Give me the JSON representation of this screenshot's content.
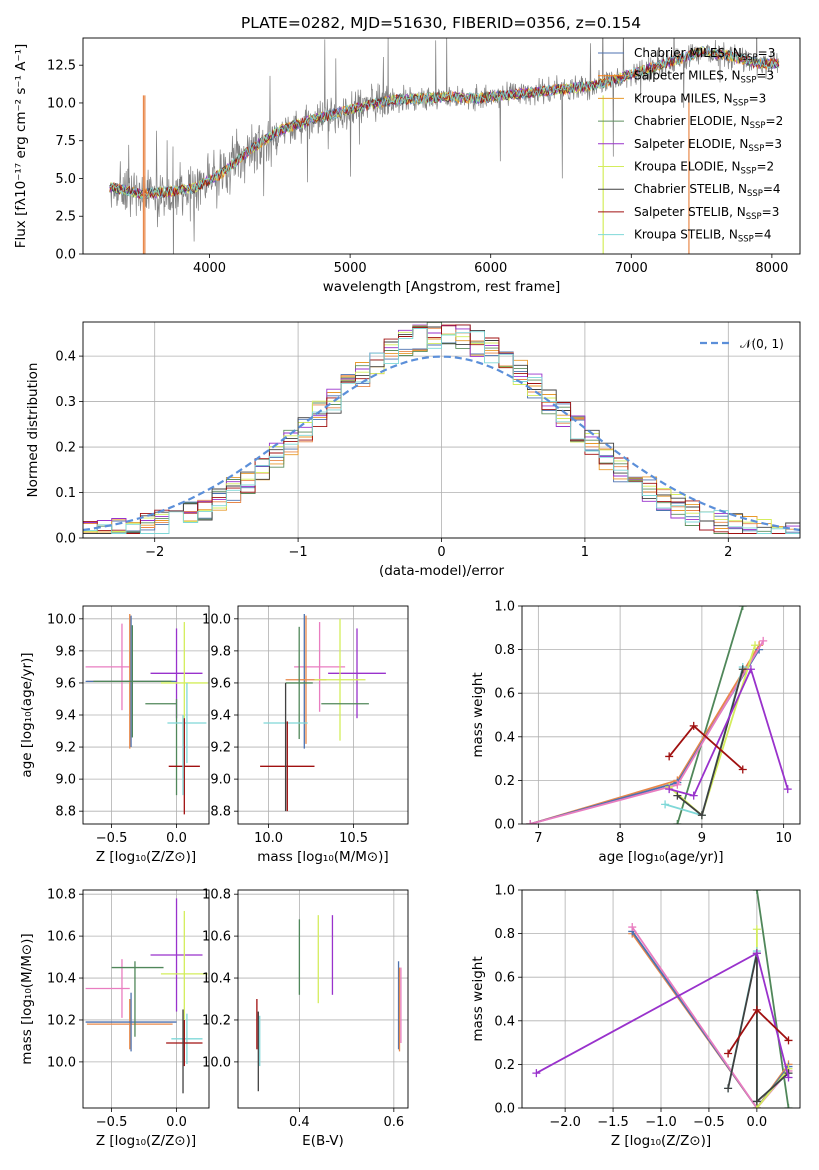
{
  "title": "PLATE=0282, MJD=51630, FIBERID=0356, z=0.154",
  "colors": {
    "data": "#808080",
    "chabrier_miles": "#4c72b0",
    "salpeter_miles": "#ff7f0e",
    "kroupa_miles": "#2ca02c",
    "chabrier_elodie": "#5f8f5f",
    "salpeter_elodie": "#9932cc",
    "kroupa_elodie": "#d4ed5c",
    "chabrier_stelib": "#404040",
    "salpeter_stelib": "#a01010",
    "kroupa_stelib": "#7fd8d8",
    "normal": "#5b8fd9",
    "orange": "#e8884a",
    "pink": "#e97dc0",
    "green": "#50875a",
    "purple": "#9932cc"
  },
  "chart_data": [
    {
      "type": "line",
      "name": "spectrum",
      "xlabel": "wavelength [Angstrom, rest frame]",
      "ylabel": "Flux [fλ10⁻¹⁷ erg cm⁻² s⁻¹ A⁻¹]",
      "xlim": [
        3100,
        8200
      ],
      "ylim": [
        0,
        14.3
      ],
      "xticks": [
        4000,
        5000,
        6000,
        7000,
        8000
      ],
      "yticks": [
        "0.0",
        "2.5",
        "5.0",
        "7.5",
        "10.0",
        "12.5"
      ],
      "legend_position": "upper-right",
      "legend": [
        {
          "label": "Chabrier MILES, N",
          "sub": "SSP",
          "suffix": "=3",
          "color": "#4c72b0"
        },
        {
          "label": "Salpeter MILES, N",
          "sub": "SSP",
          "suffix": "=3",
          "color": "#ff7f0e"
        },
        {
          "label": "Kroupa MILES, N",
          "sub": "SSP",
          "suffix": "=3",
          "color": "#e89a2c"
        },
        {
          "label": "Chabrier ELODIE, N",
          "sub": "SSP",
          "suffix": "=2",
          "color": "#5f8f5f"
        },
        {
          "label": "Salpeter ELODIE, N",
          "sub": "SSP",
          "suffix": "=3",
          "color": "#9932cc"
        },
        {
          "label": "Kroupa ELODIE, N",
          "sub": "SSP",
          "suffix": "=2",
          "color": "#d4ed5c"
        },
        {
          "label": "Chabrier STELIB, N",
          "sub": "SSP",
          "suffix": "=4",
          "color": "#404040"
        },
        {
          "label": "Salpeter STELIB, N",
          "sub": "SSP",
          "suffix": "=3",
          "color": "#a01010"
        },
        {
          "label": "Kroupa STELIB, N",
          "sub": "SSP",
          "suffix": "=4",
          "color": "#7fd8d8"
        }
      ],
      "continuum": {
        "x": [
          3300,
          3500,
          3700,
          3900,
          4100,
          4300,
          4500,
          4700,
          4900,
          5100,
          5300,
          5500,
          5700,
          5900,
          6100,
          6300,
          6500,
          6700,
          6900,
          7100,
          7300,
          7500,
          7700,
          7900
        ],
        "y": [
          4.4,
          4.0,
          4.1,
          4.4,
          5.4,
          7.0,
          8.2,
          8.8,
          9.3,
          9.8,
          10.2,
          10.3,
          10.4,
          10.3,
          10.5,
          10.7,
          10.9,
          11.1,
          11.6,
          12.2,
          12.8,
          13.4,
          13.1,
          12.6
        ]
      }
    },
    {
      "type": "histogram",
      "name": "residuals",
      "xlabel": "(data-model)/error",
      "ylabel": "Normed distribution",
      "xlim": [
        -2.5,
        2.5
      ],
      "ylim": [
        0,
        0.475
      ],
      "xticks": [
        "−2",
        "−1",
        "0",
        "1",
        "2"
      ],
      "yticks": [
        "0.0",
        "0.1",
        "0.2",
        "0.3",
        "0.4"
      ],
      "legend": {
        "label": "𝒩(0, 1)",
        "color": "#5b8fd9"
      },
      "bin_width": 0.1,
      "bins_from": -2.5,
      "bins_to": 2.5
    },
    {
      "type": "scatter",
      "name": "age-vs-Z",
      "xlabel": "Z [log₁₀(Z/Z⊙)]",
      "ylabel": "age  [log₁₀(age/yr)]",
      "xlim": [
        -0.72,
        0.25
      ],
      "ylim": [
        8.72,
        10.08
      ],
      "xticks": [
        "−0.5",
        "0.0"
      ],
      "yticks": [
        "8.8",
        "9.0",
        "9.2",
        "9.4",
        "9.6",
        "9.8",
        "10.0"
      ],
      "points": [
        {
          "x": -0.53,
          "y": 9.7,
          "xe": 0.17,
          "ye": 0.0,
          "color": "#e97dc0",
          "yr": [
            9.72,
            9.72
          ]
        },
        {
          "x": -0.42,
          "y": 9.7,
          "xe": 0.0,
          "ye": 0.27,
          "color": "#e97dc0"
        },
        {
          "x": -0.36,
          "y": 9.61,
          "xe": 0.33,
          "ye": 0.42,
          "color": "#e8884a"
        },
        {
          "x": -0.35,
          "y": 9.61,
          "xe": 0.35,
          "ye": 0.41,
          "color": "#4c72b0"
        },
        {
          "x": -0.34,
          "y": 9.61,
          "xe": 0.3,
          "ye": 0.35,
          "color": "#50875a"
        },
        {
          "x": 0.0,
          "y": 9.66,
          "xe": 0.2,
          "ye": 0.28,
          "color": "#9932cc"
        },
        {
          "x": 0.06,
          "y": 9.6,
          "xe": 0.18,
          "ye": 0.38,
          "color": "#d4ed5c"
        },
        {
          "x": -0.12,
          "y": 9.47,
          "xe": 0.12,
          "ye": 0.0,
          "color": "#50875a"
        },
        {
          "x": 0.0,
          "y": 9.2,
          "xe": 0.0,
          "ye": 0.3,
          "color": "#50875a"
        },
        {
          "x": 0.08,
          "y": 9.35,
          "xe": 0.15,
          "ye": 0.25,
          "color": "#7fd8d8"
        },
        {
          "x": 0.06,
          "y": 9.08,
          "xe": 0.12,
          "ye": 0.3,
          "color": "#a01010"
        },
        {
          "x": 0.05,
          "y": 9.15,
          "xe": 0.0,
          "ye": 0.25,
          "color": "#7fd8d8"
        }
      ]
    },
    {
      "type": "scatter",
      "name": "age-vs-mass",
      "xlabel": "mass [log₁₀(M/M⊙)]",
      "ylabel": "",
      "xlim": [
        9.82,
        10.82
      ],
      "ylim": [
        8.72,
        10.08
      ],
      "xticks": [
        "10.0",
        "10.5"
      ],
      "yticks": [
        "8.8",
        "9.0",
        "9.2",
        "9.4",
        "9.6",
        "9.8",
        "10.0"
      ],
      "points": [
        {
          "x": 10.3,
          "y": 9.7,
          "xe": 0.15,
          "ye": 0.28,
          "color": "#e97dc0"
        },
        {
          "x": 10.21,
          "y": 9.61,
          "xe": 0.0,
          "ye": 0.42,
          "color": "#4c72b0"
        },
        {
          "x": 10.22,
          "y": 9.62,
          "xe": 0.12,
          "ye": 0.4,
          "color": "#e8884a"
        },
        {
          "x": 10.18,
          "y": 9.6,
          "xe": 0.08,
          "ye": 0.35,
          "color": "#50875a"
        },
        {
          "x": 10.52,
          "y": 9.66,
          "xe": 0.17,
          "ye": 0.28,
          "color": "#9932cc"
        },
        {
          "x": 10.42,
          "y": 9.62,
          "xe": 0.15,
          "ye": 0.38,
          "color": "#d4ed5c"
        },
        {
          "x": 10.45,
          "y": 9.47,
          "xe": 0.14,
          "ye": 0.0,
          "color": "#50875a"
        },
        {
          "x": 10.1,
          "y": 9.35,
          "xe": 0.13,
          "ye": 0.0,
          "color": "#7fd8d8"
        },
        {
          "x": 10.11,
          "y": 9.08,
          "xe": 0.16,
          "ye": 0.28,
          "color": "#a01010"
        },
        {
          "x": 10.1,
          "y": 9.2,
          "xe": 0.0,
          "ye": 0.4,
          "color": "#404040"
        }
      ]
    },
    {
      "type": "line",
      "name": "mass-weight-vs-age",
      "xlabel": "age  [log₁₀(age/yr)]",
      "ylabel": "mass weight",
      "xlim": [
        6.8,
        10.2
      ],
      "ylim": [
        0,
        1
      ],
      "xticks": [
        "7",
        "8",
        "9",
        "10"
      ],
      "yticks": [
        "0.0",
        "0.2",
        "0.4",
        "0.6",
        "0.8",
        "1.0"
      ],
      "series": [
        {
          "color": "#50875a",
          "x": [
            8.7,
            9.5
          ],
          "y": [
            0.0,
            1.0
          ]
        },
        {
          "color": "#e8884a",
          "x": [
            6.9,
            8.7,
            9.7
          ],
          "y": [
            0.0,
            0.2,
            0.82
          ]
        },
        {
          "color": "#4c72b0",
          "x": [
            6.9,
            8.7,
            9.7
          ],
          "y": [
            0.0,
            0.19,
            0.8
          ]
        },
        {
          "color": "#e97dc0",
          "x": [
            6.9,
            8.7,
            9.75
          ],
          "y": [
            0.0,
            0.18,
            0.84
          ]
        },
        {
          "color": "#d4ed5c",
          "x": [
            8.6,
            9.0,
            9.65
          ],
          "y": [
            0.17,
            0.04,
            0.82
          ]
        },
        {
          "color": "#7fd8d8",
          "x": [
            8.55,
            9.0,
            9.5
          ],
          "y": [
            0.09,
            0.04,
            0.72
          ]
        },
        {
          "color": "#404040",
          "x": [
            8.7,
            9.0,
            9.5
          ],
          "y": [
            0.13,
            0.04,
            0.71
          ]
        },
        {
          "color": "#9932cc",
          "x": [
            8.6,
            8.9,
            9.6,
            10.05
          ],
          "y": [
            0.16,
            0.13,
            0.71,
            0.16
          ]
        },
        {
          "color": "#a01010",
          "x": [
            8.6,
            8.9,
            9.5
          ],
          "y": [
            0.31,
            0.45,
            0.25
          ]
        }
      ]
    },
    {
      "type": "scatter",
      "name": "mass-vs-Z",
      "xlabel": "Z [log₁₀(Z/Z⊙)]",
      "ylabel": "mass [log₁₀(M/M⊙)]",
      "xlim": [
        -0.72,
        0.25
      ],
      "ylim": [
        9.78,
        10.82
      ],
      "xticks": [
        "−0.5",
        "0.0"
      ],
      "yticks": [
        "10.0",
        "10.2",
        "10.4",
        "10.6",
        "10.8"
      ],
      "points": [
        {
          "x": -0.53,
          "y": 10.35,
          "xe": 0.17,
          "ye": 0.0,
          "color": "#e97dc0"
        },
        {
          "x": -0.42,
          "y": 10.35,
          "xe": 0.0,
          "ye": 0.14,
          "color": "#e97dc0"
        },
        {
          "x": -0.36,
          "y": 10.18,
          "xe": 0.33,
          "ye": 0.12,
          "color": "#e8884a"
        },
        {
          "x": -0.35,
          "y": 10.19,
          "xe": 0.35,
          "ye": 0.14,
          "color": "#4c72b0"
        },
        {
          "x": -0.3,
          "y": 10.45,
          "xe": 0.2,
          "ye": 0.0,
          "color": "#50875a"
        },
        {
          "x": -0.32,
          "y": 10.3,
          "xe": 0.0,
          "ye": 0.18,
          "color": "#50875a"
        },
        {
          "x": 0.0,
          "y": 10.51,
          "xe": 0.2,
          "ye": 0.27,
          "color": "#9932cc"
        },
        {
          "x": 0.06,
          "y": 10.42,
          "xe": 0.18,
          "ye": 0.3,
          "color": "#d4ed5c"
        },
        {
          "x": 0.08,
          "y": 10.11,
          "xe": 0.12,
          "ye": 0.12,
          "color": "#7fd8d8"
        },
        {
          "x": 0.06,
          "y": 10.09,
          "xe": 0.14,
          "ye": 0.11,
          "color": "#a01010"
        },
        {
          "x": 0.05,
          "y": 10.05,
          "xe": 0.0,
          "ye": 0.2,
          "color": "#404040"
        }
      ]
    },
    {
      "type": "scatter",
      "name": "mass-vs-EBV",
      "xlabel": "E(B-V)",
      "ylabel": "",
      "xlim": [
        0.27,
        0.63
      ],
      "ylim": [
        9.78,
        10.82
      ],
      "xticks": [
        "0.4",
        "0.6"
      ],
      "yticks": [
        "10.0",
        "10.2",
        "10.4",
        "10.6",
        "10.8"
      ],
      "points": [
        {
          "x": 0.4,
          "y": 10.5,
          "xe": 0.0,
          "ye": 0.18,
          "color": "#50875a"
        },
        {
          "x": 0.44,
          "y": 10.49,
          "xe": 0.0,
          "ye": 0.21,
          "color": "#d4ed5c"
        },
        {
          "x": 0.47,
          "y": 10.51,
          "xe": 0.0,
          "ye": 0.19,
          "color": "#9932cc"
        },
        {
          "x": 0.61,
          "y": 10.27,
          "xe": 0.0,
          "ye": 0.21,
          "color": "#4c72b0"
        },
        {
          "x": 0.612,
          "y": 10.25,
          "xe": 0.0,
          "ye": 0.2,
          "color": "#e8884a"
        },
        {
          "x": 0.615,
          "y": 10.27,
          "xe": 0.0,
          "ye": 0.18,
          "color": "#e97dc0"
        },
        {
          "x": 0.31,
          "y": 10.18,
          "xe": 0.0,
          "ye": 0.12,
          "color": "#a01010"
        },
        {
          "x": 0.313,
          "y": 10.05,
          "xe": 0.0,
          "ye": 0.19,
          "color": "#404040"
        },
        {
          "x": 0.316,
          "y": 10.1,
          "xe": 0.0,
          "ye": 0.12,
          "color": "#7fd8d8"
        }
      ]
    },
    {
      "type": "line",
      "name": "mass-weight-vs-Z",
      "xlabel": "Z [log₁₀(Z/Z⊙)]",
      "ylabel": "mass weight",
      "xlim": [
        -2.45,
        0.45
      ],
      "ylim": [
        0,
        1
      ],
      "xticks": [
        "−2.0",
        "−1.5",
        "−1.0",
        "−0.5",
        "0.0"
      ],
      "yticks": [
        "0.0",
        "0.2",
        "0.4",
        "0.6",
        "0.8",
        "1.0"
      ],
      "series": [
        {
          "color": "#50875a",
          "x": [
            0.0,
            0.33
          ],
          "y": [
            1.0,
            0.0
          ]
        },
        {
          "color": "#e8884a",
          "x": [
            -1.3,
            0.0,
            0.33
          ],
          "y": [
            0.8,
            0.0,
            0.2
          ]
        },
        {
          "color": "#4c72b0",
          "x": [
            -1.3,
            0.0,
            0.33
          ],
          "y": [
            0.81,
            0.0,
            0.19
          ]
        },
        {
          "color": "#e97dc0",
          "x": [
            -1.3,
            0.0,
            0.33
          ],
          "y": [
            0.83,
            0.0,
            0.17
          ]
        },
        {
          "color": "#d4ed5c",
          "x": [
            0.0,
            0.0,
            0.33
          ],
          "y": [
            0.82,
            0.0,
            0.18
          ]
        },
        {
          "color": "#7fd8d8",
          "x": [
            -0.3,
            0.0,
            0.0,
            0.33
          ],
          "y": [
            0.09,
            0.72,
            0.03,
            0.16
          ]
        },
        {
          "color": "#404040",
          "x": [
            -0.3,
            0.0,
            0.0,
            0.33
          ],
          "y": [
            0.09,
            0.71,
            0.03,
            0.16
          ]
        },
        {
          "color": "#9932cc",
          "x": [
            -2.3,
            0.0,
            0.33
          ],
          "y": [
            0.16,
            0.71,
            0.14
          ]
        },
        {
          "color": "#a01010",
          "x": [
            -0.3,
            0.0,
            0.33
          ],
          "y": [
            0.25,
            0.45,
            0.31
          ]
        }
      ]
    }
  ]
}
